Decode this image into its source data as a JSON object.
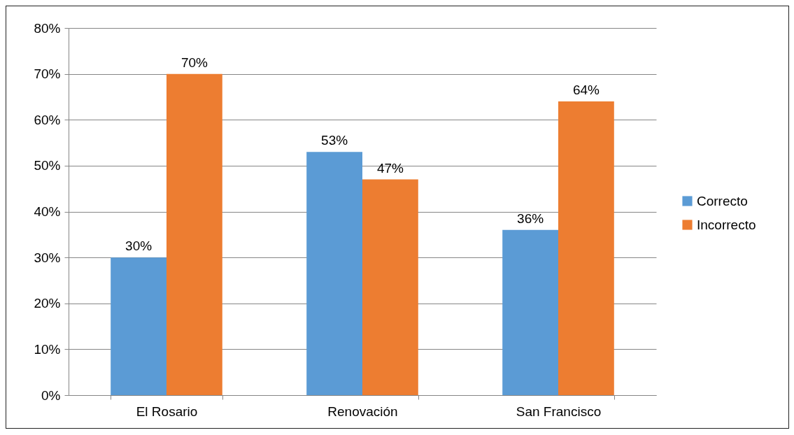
{
  "chart_data": {
    "type": "bar",
    "categories": [
      "El Rosario",
      "Renovación",
      "San Francisco"
    ],
    "series": [
      {
        "name": "Correcto",
        "color": "#5b9bd5",
        "values": [
          30,
          53,
          36
        ],
        "value_labels": [
          "30%",
          "53%",
          "36%"
        ]
      },
      {
        "name": "Incorrecto",
        "color": "#ed7d31",
        "values": [
          70,
          47,
          64
        ],
        "value_labels": [
          "70%",
          "47%",
          "64%"
        ]
      }
    ],
    "ylim": [
      0,
      80
    ],
    "yticks": [
      {
        "value": 0,
        "label": "0%"
      },
      {
        "value": 10,
        "label": "10%"
      },
      {
        "value": 20,
        "label": "20%"
      },
      {
        "value": 30,
        "label": "30%"
      },
      {
        "value": 40,
        "label": "40%"
      },
      {
        "value": 50,
        "label": "50%"
      },
      {
        "value": 60,
        "label": "60%"
      },
      {
        "value": 70,
        "label": "70%"
      },
      {
        "value": 80,
        "label": "80%"
      }
    ],
    "grid": "y",
    "legend": "right"
  }
}
